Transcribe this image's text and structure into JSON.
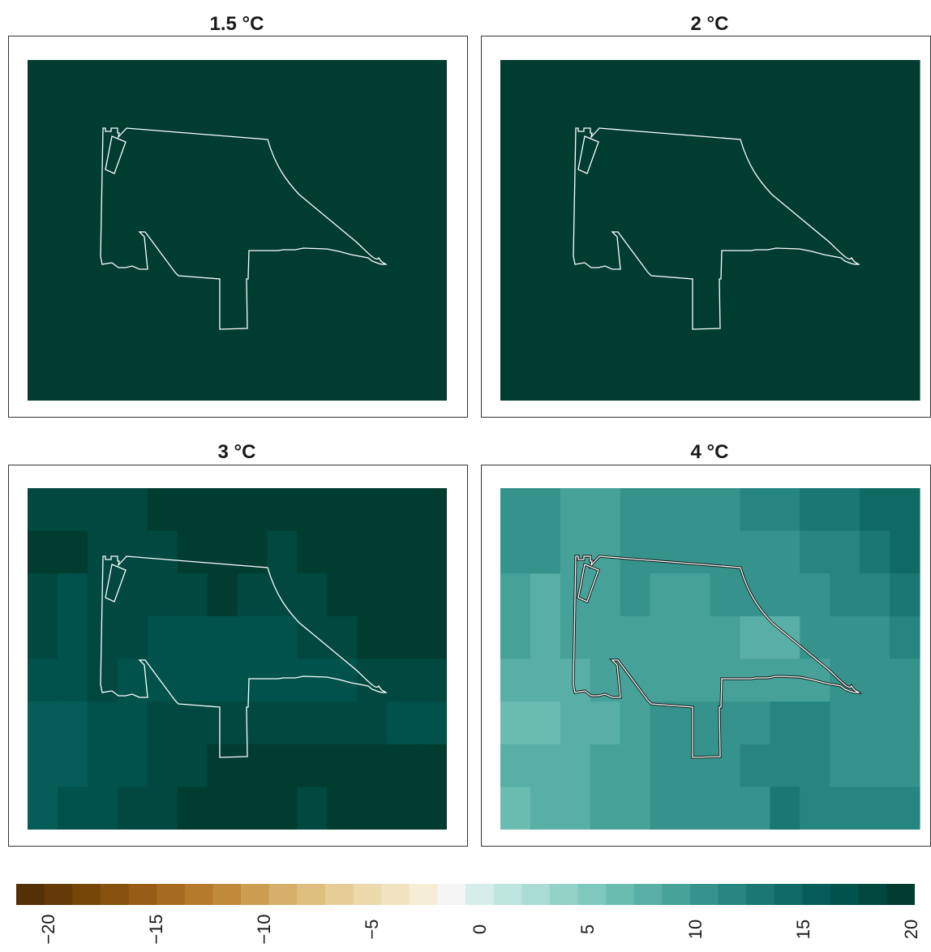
{
  "panels": [
    {
      "title": "1.5 °C",
      "grid": [
        [
          21,
          21,
          21,
          21,
          21,
          21,
          21,
          21,
          21,
          21,
          21,
          21,
          21,
          21
        ],
        [
          21,
          21,
          21,
          21,
          21,
          21,
          21,
          21,
          21,
          21,
          21,
          21,
          21,
          21
        ],
        [
          21,
          21,
          21,
          21,
          21,
          21,
          21,
          21,
          21,
          21,
          21,
          21,
          21,
          21
        ],
        [
          21,
          21,
          21,
          21,
          21,
          21,
          21,
          21,
          21,
          21,
          21,
          21,
          21,
          21
        ],
        [
          21,
          21,
          21,
          21,
          21,
          21,
          21,
          21,
          21,
          21,
          21,
          21,
          21,
          21
        ],
        [
          21,
          21,
          21,
          21,
          21,
          21,
          21,
          21,
          21,
          21,
          21,
          21,
          21,
          21
        ],
        [
          21,
          21,
          21,
          21,
          21,
          21,
          21,
          21,
          21,
          21,
          21,
          21,
          21,
          21
        ],
        [
          21,
          21,
          21,
          21,
          21,
          21,
          21,
          21,
          21,
          21,
          21,
          21,
          21,
          21
        ]
      ]
    },
    {
      "title": "2 °C",
      "grid": [
        [
          21,
          21,
          21,
          21,
          21,
          21,
          21,
          21,
          21,
          21,
          21,
          21,
          21,
          21
        ],
        [
          21,
          21,
          21,
          21,
          21,
          21,
          21,
          21,
          21,
          21,
          21,
          21,
          21,
          21
        ],
        [
          21,
          21,
          21,
          21,
          21,
          21,
          21,
          21,
          21,
          21,
          21,
          21,
          21,
          21
        ],
        [
          21,
          21,
          21,
          21,
          21,
          21,
          21,
          21,
          21,
          21,
          21,
          21,
          21,
          21
        ],
        [
          21,
          21,
          21,
          21,
          21,
          21,
          21,
          21,
          21,
          21,
          21,
          21,
          21,
          21
        ],
        [
          21,
          21,
          21,
          21,
          21,
          21,
          21,
          21,
          21,
          21,
          21,
          21,
          21,
          21
        ],
        [
          21,
          21,
          21,
          21,
          21,
          21,
          21,
          21,
          21,
          21,
          21,
          21,
          21,
          21
        ],
        [
          21,
          21,
          21,
          21,
          21,
          21,
          21,
          21,
          21,
          21,
          21,
          21,
          21,
          21
        ]
      ]
    },
    {
      "title": "3 °C",
      "grid": [
        [
          18,
          18,
          18,
          18,
          19,
          19,
          19,
          19,
          20,
          20,
          20,
          20,
          21,
          20
        ],
        [
          19,
          19,
          18,
          18,
          18,
          19,
          19,
          19,
          18,
          20,
          20,
          20,
          20,
          20
        ],
        [
          18,
          17,
          18,
          18,
          18,
          18,
          19,
          18,
          18,
          18,
          19,
          19,
          20,
          20
        ],
        [
          18,
          17,
          18,
          18,
          17,
          17,
          17,
          17,
          17,
          18,
          18,
          19,
          19,
          19
        ],
        [
          17,
          17,
          18,
          17,
          17,
          17,
          17,
          17,
          17,
          17,
          17,
          18,
          18,
          18
        ],
        [
          16,
          16,
          17,
          17,
          18,
          18,
          18,
          18,
          18,
          18,
          18,
          18,
          17,
          17
        ],
        [
          16,
          16,
          17,
          17,
          18,
          18,
          19,
          19,
          19,
          19,
          19,
          19,
          19,
          19
        ],
        [
          15,
          17,
          17,
          18,
          18,
          19,
          19,
          19,
          19,
          18,
          20,
          19,
          19,
          19
        ]
      ]
    },
    {
      "title": "4 °C",
      "grid": [
        [
          10,
          10,
          9,
          9,
          10,
          11,
          11,
          11,
          12,
          12,
          13,
          13,
          14,
          14
        ],
        [
          10,
          10,
          9,
          9,
          10,
          10,
          11,
          10,
          10,
          11,
          12,
          12,
          13,
          14
        ],
        [
          9,
          8,
          9,
          9,
          10,
          9,
          9,
          10,
          10,
          11,
          11,
          12,
          12,
          13
        ],
        [
          9,
          8,
          9,
          9,
          9,
          9,
          9,
          9,
          8,
          8,
          10,
          11,
          11,
          12
        ],
        [
          8,
          8,
          8,
          9,
          9,
          9,
          9,
          9,
          9,
          9,
          9,
          10,
          11,
          11
        ],
        [
          7,
          7,
          8,
          8,
          9,
          10,
          10,
          10,
          11,
          12,
          12,
          11,
          10,
          10
        ],
        [
          8,
          8,
          8,
          9,
          9,
          10,
          10,
          11,
          12,
          12,
          12,
          11,
          11,
          10
        ],
        [
          7,
          8,
          8,
          9,
          9,
          10,
          10,
          10,
          11,
          13,
          12,
          12,
          12,
          12
        ]
      ]
    }
  ],
  "scale": {
    "min": -20,
    "max": 20,
    "ticks": [
      "−20",
      "−15",
      "−10",
      "−5",
      "0",
      "5",
      "10",
      "15",
      "20"
    ],
    "colors": [
      "#543005",
      "#653a07",
      "#764609",
      "#86500d",
      "#975c15",
      "#a66b20",
      "#b57a2c",
      "#c18a3a",
      "#cd9d51",
      "#d6b06a",
      "#dfbf7f",
      "#e6cd95",
      "#ecd9ac",
      "#f1e3bf",
      "#f5edd6",
      "#f5f5f5",
      "#d6eeea",
      "#bfe5df",
      "#a9dcd3",
      "#94d2c8",
      "#7fc8bd",
      "#6bbcb1",
      "#58afa5",
      "#46a199",
      "#36938c",
      "#27857f",
      "#1a7771",
      "#106a64",
      "#065d57",
      "#01524b",
      "#004840",
      "#003c30"
    ]
  }
}
